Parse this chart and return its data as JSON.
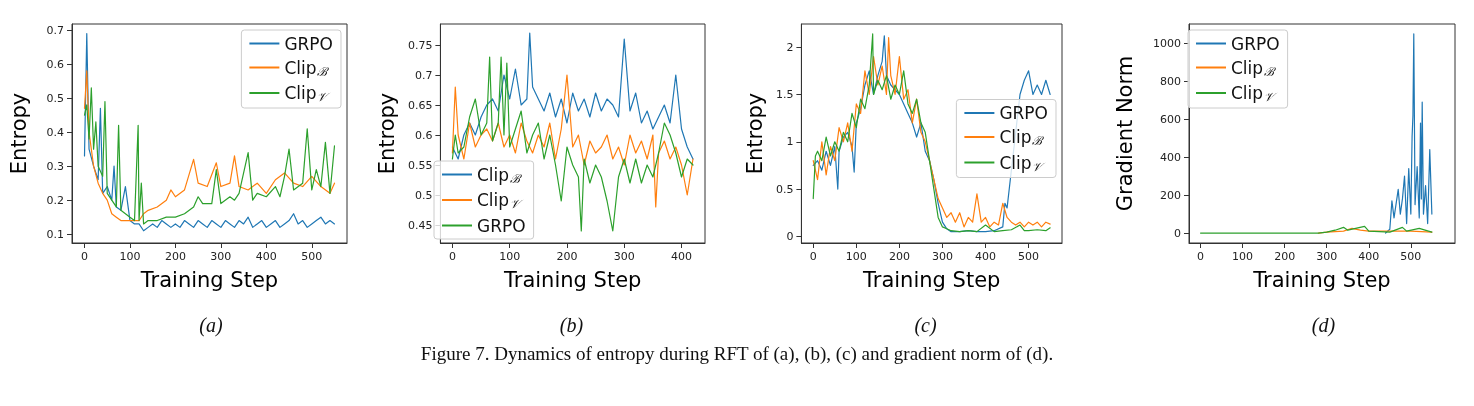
{
  "chart_data": [
    {
      "type": "line",
      "title": "(a)",
      "xlabel": "Training Step",
      "ylabel": "Entropy",
      "xlim": [
        -27.5,
        577.5
      ],
      "ylim": [
        0.074,
        0.718
      ],
      "xticks": [
        0,
        100,
        200,
        300,
        400,
        500
      ],
      "yticks": [
        0.1,
        0.2,
        0.3,
        0.4,
        0.5,
        0.6,
        0.7
      ],
      "legend": "top right",
      "marker": "none",
      "grid": false,
      "annotations": [
        "Figure 7. Dynamics of entropy during RFT of (a), (b), (c) and gradient norm of (d)."
      ],
      "series": [
        {
          "name": "GRPO",
          "color": "#1f77b4",
          "x": [
            0,
            5,
            10,
            20,
            30,
            35,
            40,
            50,
            60,
            65,
            70,
            80,
            90,
            100,
            110,
            120,
            130,
            140,
            150,
            160,
            170,
            180,
            190,
            200,
            210,
            220,
            230,
            240,
            250,
            260,
            270,
            280,
            290,
            300,
            310,
            320,
            330,
            340,
            350,
            360,
            370,
            380,
            390,
            400,
            410,
            420,
            430,
            440,
            450,
            460,
            470,
            480,
            490,
            500,
            510,
            520,
            530,
            540,
            550
          ],
          "values": [
            0.33,
            0.69,
            0.35,
            0.3,
            0.26,
            0.47,
            0.22,
            0.24,
            0.2,
            0.3,
            0.18,
            0.17,
            0.24,
            0.14,
            0.13,
            0.13,
            0.11,
            0.12,
            0.13,
            0.12,
            0.14,
            0.13,
            0.12,
            0.13,
            0.12,
            0.14,
            0.13,
            0.12,
            0.14,
            0.13,
            0.12,
            0.14,
            0.13,
            0.12,
            0.14,
            0.13,
            0.12,
            0.14,
            0.13,
            0.15,
            0.12,
            0.13,
            0.14,
            0.12,
            0.13,
            0.14,
            0.12,
            0.13,
            0.14,
            0.16,
            0.13,
            0.14,
            0.12,
            0.13,
            0.14,
            0.15,
            0.13,
            0.14,
            0.13
          ]
        },
        {
          "name": "Clip$_{ℬ}$",
          "color": "#ff7f0e",
          "x": [
            0,
            5,
            10,
            20,
            30,
            40,
            50,
            60,
            70,
            80,
            100,
            120,
            130,
            140,
            160,
            180,
            190,
            200,
            220,
            240,
            250,
            270,
            290,
            300,
            320,
            330,
            340,
            360,
            380,
            400,
            420,
            440,
            460,
            480,
            500,
            520,
            540,
            550
          ],
          "values": [
            0.47,
            0.58,
            0.4,
            0.3,
            0.25,
            0.22,
            0.2,
            0.16,
            0.15,
            0.14,
            0.14,
            0.14,
            0.16,
            0.17,
            0.18,
            0.2,
            0.23,
            0.21,
            0.23,
            0.32,
            0.25,
            0.24,
            0.31,
            0.24,
            0.25,
            0.33,
            0.24,
            0.23,
            0.25,
            0.22,
            0.26,
            0.28,
            0.25,
            0.24,
            0.27,
            0.24,
            0.22,
            0.25
          ]
        },
        {
          "name": "Clip$_{𝒱}$",
          "color": "#2ca02c",
          "x": [
            0,
            5,
            10,
            15,
            20,
            25,
            30,
            40,
            45,
            50,
            60,
            70,
            75,
            80,
            90,
            100,
            110,
            118,
            120,
            125,
            130,
            140,
            160,
            180,
            200,
            220,
            240,
            250,
            260,
            280,
            290,
            300,
            320,
            330,
            340,
            360,
            370,
            380,
            400,
            420,
            430,
            440,
            450,
            460,
            480,
            490,
            500,
            510,
            520,
            530,
            540,
            550
          ],
          "values": [
            0.45,
            0.48,
            0.38,
            0.53,
            0.35,
            0.43,
            0.3,
            0.27,
            0.49,
            0.22,
            0.2,
            0.18,
            0.42,
            0.17,
            0.16,
            0.15,
            0.14,
            0.42,
            0.14,
            0.25,
            0.13,
            0.14,
            0.14,
            0.15,
            0.15,
            0.16,
            0.18,
            0.21,
            0.19,
            0.19,
            0.29,
            0.19,
            0.21,
            0.2,
            0.22,
            0.34,
            0.2,
            0.22,
            0.21,
            0.24,
            0.21,
            0.27,
            0.35,
            0.23,
            0.25,
            0.41,
            0.23,
            0.29,
            0.24,
            0.37,
            0.22,
            0.36
          ]
        }
      ]
    },
    {
      "type": "line",
      "title": "(b)",
      "xlabel": "Training Step",
      "ylabel": "Entropy",
      "xlim": [
        -21,
        441
      ],
      "ylim": [
        0.42,
        0.785
      ],
      "xticks": [
        0,
        100,
        200,
        300,
        400
      ],
      "yticks": [
        0.45,
        0.5,
        0.55,
        0.6,
        0.65,
        0.7,
        0.75
      ],
      "legend": "bottom left",
      "marker": "none",
      "grid": false,
      "series": [
        {
          "name": "Clip$_{ℬ}$",
          "color": "#1f77b4",
          "x": [
            0,
            10,
            20,
            30,
            40,
            50,
            60,
            70,
            80,
            90,
            100,
            110,
            120,
            130,
            135,
            140,
            150,
            160,
            170,
            180,
            190,
            200,
            210,
            220,
            230,
            240,
            250,
            260,
            270,
            280,
            290,
            300,
            310,
            320,
            330,
            340,
            350,
            360,
            370,
            380,
            390,
            400,
            410,
            420
          ],
          "values": [
            0.58,
            0.56,
            0.6,
            0.62,
            0.6,
            0.63,
            0.65,
            0.66,
            0.64,
            0.7,
            0.66,
            0.71,
            0.65,
            0.66,
            0.77,
            0.68,
            0.66,
            0.64,
            0.67,
            0.63,
            0.66,
            0.62,
            0.67,
            0.64,
            0.66,
            0.63,
            0.67,
            0.64,
            0.66,
            0.65,
            0.63,
            0.76,
            0.64,
            0.67,
            0.62,
            0.64,
            0.61,
            0.63,
            0.65,
            0.62,
            0.7,
            0.61,
            0.58,
            0.56
          ]
        },
        {
          "name": "Clip$_{𝒱}$",
          "color": "#ff7f0e",
          "x": [
            0,
            5,
            10,
            20,
            30,
            40,
            50,
            60,
            70,
            80,
            90,
            100,
            110,
            120,
            130,
            140,
            150,
            160,
            170,
            180,
            190,
            200,
            210,
            220,
            230,
            240,
            250,
            260,
            270,
            280,
            290,
            300,
            310,
            320,
            330,
            340,
            350,
            355,
            360,
            370,
            380,
            390,
            400,
            410,
            420
          ],
          "values": [
            0.57,
            0.68,
            0.6,
            0.56,
            0.62,
            0.58,
            0.6,
            0.61,
            0.59,
            0.62,
            0.58,
            0.6,
            0.57,
            0.62,
            0.59,
            0.57,
            0.6,
            0.58,
            0.62,
            0.56,
            0.61,
            0.7,
            0.58,
            0.6,
            0.55,
            0.59,
            0.57,
            0.58,
            0.6,
            0.56,
            0.58,
            0.55,
            0.6,
            0.57,
            0.59,
            0.56,
            0.6,
            0.48,
            0.57,
            0.59,
            0.56,
            0.58,
            0.55,
            0.5,
            0.56
          ]
        },
        {
          "name": "GRPO",
          "color": "#2ca02c",
          "x": [
            0,
            5,
            10,
            20,
            30,
            40,
            50,
            60,
            65,
            70,
            80,
            85,
            90,
            95,
            100,
            110,
            120,
            130,
            140,
            150,
            160,
            170,
            180,
            190,
            200,
            210,
            220,
            225,
            230,
            240,
            250,
            260,
            270,
            280,
            290,
            300,
            310,
            320,
            330,
            340,
            350,
            360,
            370,
            380,
            390,
            400,
            410,
            420
          ],
          "values": [
            0.56,
            0.6,
            0.57,
            0.58,
            0.63,
            0.66,
            0.6,
            0.62,
            0.73,
            0.59,
            0.62,
            0.73,
            0.6,
            0.72,
            0.58,
            0.61,
            0.64,
            0.57,
            0.6,
            0.62,
            0.56,
            0.6,
            0.55,
            0.49,
            0.58,
            0.55,
            0.53,
            0.44,
            0.56,
            0.52,
            0.55,
            0.53,
            0.49,
            0.44,
            0.53,
            0.56,
            0.52,
            0.56,
            0.52,
            0.55,
            0.53,
            0.57,
            0.62,
            0.6,
            0.57,
            0.53,
            0.56,
            0.55
          ]
        }
      ]
    },
    {
      "type": "line",
      "title": "(c)",
      "xlabel": "Training Step",
      "ylabel": "Entropy",
      "xlim": [
        -27.5,
        577.5
      ],
      "ylim": [
        -0.07,
        2.245
      ],
      "xticks": [
        0,
        100,
        200,
        300,
        400,
        500
      ],
      "yticks": [
        0.0,
        0.5,
        1.0,
        1.5,
        2.0
      ],
      "legend": "right",
      "marker": "none",
      "grid": false,
      "series": [
        {
          "name": "GRPO",
          "color": "#1f77b4",
          "x": [
            0,
            10,
            20,
            30,
            40,
            50,
            57,
            60,
            70,
            80,
            90,
            95,
            100,
            110,
            120,
            130,
            140,
            150,
            160,
            165,
            170,
            180,
            190,
            200,
            210,
            220,
            230,
            240,
            250,
            260,
            270,
            280,
            290,
            300,
            310,
            320,
            340,
            360,
            380,
            400,
            420,
            440,
            445,
            450,
            480,
            490,
            500,
            510,
            520,
            530,
            540,
            550
          ],
          "values": [
            0.75,
            0.8,
            0.7,
            0.9,
            0.75,
            0.95,
            0.5,
            0.9,
            1.05,
            1.1,
            0.95,
            0.68,
            1.2,
            1.35,
            1.6,
            1.75,
            1.5,
            1.7,
            1.85,
            2.12,
            1.7,
            1.6,
            1.55,
            1.5,
            1.4,
            1.3,
            1.2,
            1.05,
            1.2,
            0.9,
            0.8,
            0.6,
            0.35,
            0.15,
            0.08,
            0.05,
            0.05,
            0.06,
            0.05,
            0.05,
            0.06,
            0.1,
            0.35,
            0.3,
            1.5,
            1.65,
            1.75,
            1.5,
            1.6,
            1.5,
            1.65,
            1.5
          ]
        },
        {
          "name": "Clip$_{ℬ}$",
          "color": "#ff7f0e",
          "x": [
            0,
            10,
            20,
            30,
            40,
            50,
            60,
            70,
            80,
            90,
            100,
            110,
            120,
            130,
            140,
            150,
            160,
            170,
            175,
            180,
            190,
            200,
            210,
            220,
            230,
            240,
            250,
            260,
            270,
            280,
            290,
            300,
            310,
            320,
            330,
            340,
            350,
            360,
            370,
            380,
            390,
            400,
            410,
            420,
            430,
            440,
            450,
            460,
            470,
            480,
            490,
            500,
            510,
            520,
            530,
            540,
            550
          ],
          "values": [
            0.8,
            0.6,
            1.0,
            0.65,
            0.95,
            0.8,
            1.15,
            1.0,
            1.2,
            0.9,
            1.4,
            1.3,
            1.75,
            1.5,
            1.9,
            1.6,
            1.8,
            1.5,
            2.1,
            1.7,
            1.5,
            1.9,
            1.45,
            1.55,
            1.2,
            1.45,
            1.1,
            1.0,
            0.8,
            0.6,
            0.4,
            0.3,
            0.2,
            0.25,
            0.15,
            0.25,
            0.1,
            0.2,
            0.15,
            0.45,
            0.15,
            0.2,
            0.1,
            0.15,
            0.12,
            0.35,
            0.2,
            0.15,
            0.12,
            0.15,
            0.1,
            0.15,
            0.12,
            0.15,
            0.1,
            0.15,
            0.13
          ]
        },
        {
          "name": "Clip$_{𝒱}$",
          "color": "#2ca02c",
          "x": [
            0,
            5,
            10,
            20,
            30,
            40,
            50,
            60,
            70,
            80,
            90,
            100,
            110,
            120,
            130,
            138,
            140,
            150,
            160,
            170,
            180,
            190,
            200,
            210,
            220,
            230,
            240,
            250,
            260,
            270,
            280,
            290,
            300,
            310,
            320,
            340,
            360,
            380,
            400,
            420,
            440,
            460,
            480,
            490,
            500,
            520,
            540,
            550
          ],
          "values": [
            0.4,
            0.85,
            0.9,
            0.8,
            1.05,
            0.85,
            1.0,
            0.9,
            1.1,
            1.0,
            1.3,
            1.15,
            1.45,
            1.35,
            1.6,
            2.14,
            1.5,
            1.65,
            1.55,
            1.7,
            1.45,
            1.6,
            1.5,
            1.75,
            1.4,
            1.3,
            1.45,
            1.2,
            1.1,
            0.8,
            0.5,
            0.2,
            0.1,
            0.08,
            0.06,
            0.05,
            0.06,
            0.05,
            0.12,
            0.05,
            0.06,
            0.07,
            0.12,
            0.06,
            0.06,
            0.07,
            0.06,
            0.09
          ]
        }
      ]
    },
    {
      "type": "line",
      "title": "(d)",
      "xlabel": "Training Step",
      "ylabel": "Gradient Norm",
      "xlim": [
        -27.5,
        605
      ],
      "ylim": [
        -52.5,
        1102.5
      ],
      "xticks": [
        0,
        100,
        200,
        300,
        400,
        500
      ],
      "yticks": [
        0,
        200,
        400,
        600,
        800,
        1000
      ],
      "legend": "top left",
      "marker": "none",
      "grid": false,
      "series": [
        {
          "name": "GRPO",
          "color": "#1f77b4",
          "x": [
            440,
            450,
            455,
            460,
            470,
            475,
            480,
            485,
            490,
            495,
            500,
            503,
            505,
            507,
            510,
            515,
            520,
            523,
            525,
            527,
            530,
            535,
            540,
            545,
            550
          ],
          "values": [
            0,
            20,
            170,
            80,
            230,
            100,
            180,
            300,
            50,
            340,
            100,
            510,
            620,
            1050,
            150,
            350,
            80,
            580,
            180,
            690,
            100,
            250,
            50,
            440,
            100
          ]
        },
        {
          "name": "Clip$_{ℬ}$",
          "color": "#ff7f0e",
          "x": [
            280,
            300,
            340,
            360,
            380,
            400,
            450,
            500,
            550
          ],
          "values": [
            0,
            5,
            10,
            25,
            15,
            10,
            10,
            10,
            5
          ]
        },
        {
          "name": "Clip$_{𝒱}$",
          "color": "#2ca02c",
          "x": [
            0,
            280,
            300,
            320,
            340,
            350,
            390,
            400,
            450,
            480,
            490,
            520,
            550
          ],
          "values": [
            0,
            0,
            5,
            15,
            30,
            15,
            35,
            10,
            5,
            30,
            10,
            25,
            5
          ]
        }
      ]
    }
  ]
}
